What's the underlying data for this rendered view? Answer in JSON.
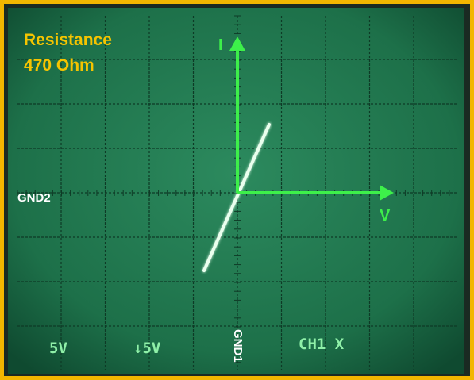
{
  "annotation": {
    "title": "Resistance",
    "value": "470 Ohm"
  },
  "axes": {
    "y_label": "I",
    "x_label": "V"
  },
  "markers": {
    "left": "GND2",
    "bottom": "GND1"
  },
  "readout": [
    "5V",
    "↓5V",
    "CH1 X"
  ]
}
